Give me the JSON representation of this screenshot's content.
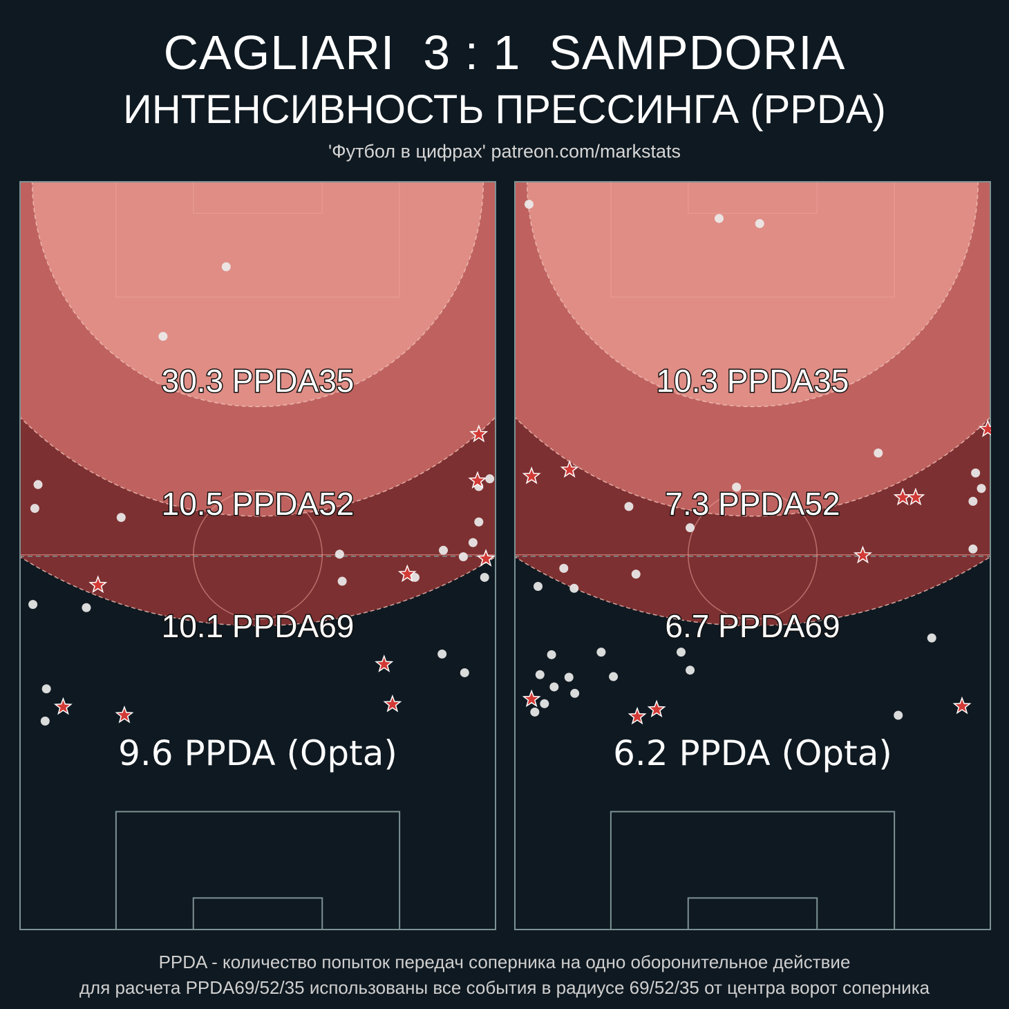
{
  "header": {
    "title": "CAGLIARI  3 : 1  SAMPDORIA",
    "subtitle": "ИНТЕНСИВНОСТЬ ПРЕССИНГА (PPDA)",
    "credit": "'Футбол в цифрах' patreon.com/markstats"
  },
  "footer": {
    "line1": "PPDA - количество попыток передач соперника на одно оборонительное действие",
    "line2": "для расчета PPDA69/52/35 использованы все события в радиусе 69/52/35 от центра ворот соперника"
  },
  "colors": {
    "background": "#0f1921",
    "zone35": "#df8d85",
    "zone52": "#bf625f",
    "zone69": "#7d3031",
    "star": "#d23a36",
    "dot": "#ececec",
    "line": "#7d9294"
  },
  "chart_data": [
    {
      "type": "scatter",
      "team": "CAGLIARI",
      "zones": [
        {
          "label": "30.3 PPDA35",
          "radius": 35
        },
        {
          "label": "10.5 PPDA52",
          "radius": 52
        },
        {
          "label": "10.1 PPDA69",
          "radius": 69
        }
      ],
      "opta_label": "9.6 PPDA (Opta)",
      "dots": [
        [
          32.1,
          86.7
        ],
        [
          22.3,
          75.9
        ],
        [
          2.9,
          52.9
        ],
        [
          2.4,
          49.2
        ],
        [
          15.8,
          47.8
        ],
        [
          73,
          53.8
        ],
        [
          71.3,
          52.6
        ],
        [
          71.3,
          47.1
        ],
        [
          70.4,
          43.9
        ],
        [
          65.8,
          42.7
        ],
        [
          68.9,
          41.7
        ],
        [
          49.7,
          42.1
        ],
        [
          61.4,
          38.5
        ],
        [
          72.2,
          38.5
        ],
        [
          50.1,
          37.9
        ],
        [
          2.1,
          34.3
        ],
        [
          10.4,
          33.8
        ],
        [
          65.6,
          26.6
        ],
        [
          69.1,
          23.7
        ],
        [
          4.2,
          21.2
        ],
        [
          4.0,
          16.2
        ]
      ],
      "stars": [
        [
          71.3,
          60.7
        ],
        [
          71.1,
          53.5
        ],
        [
          72.4,
          41.4
        ],
        [
          60.2,
          39
        ],
        [
          12.2,
          37.3
        ],
        [
          56.6,
          25
        ],
        [
          6.8,
          18.4
        ],
        [
          16.3,
          17.1
        ],
        [
          57.9,
          18.8
        ]
      ]
    },
    {
      "type": "scatter",
      "team": "SAMPDORIA",
      "zones": [
        {
          "label": "10.3 PPDA35",
          "radius": 35
        },
        {
          "label": "7.3 PPDA52",
          "radius": 52
        },
        {
          "label": "6.7 PPDA69",
          "radius": 69
        }
      ],
      "opta_label": "6.2 PPDA (Opta)",
      "dots": [
        [
          2.3,
          96.4
        ],
        [
          31.8,
          94.2
        ],
        [
          38.1,
          93.4
        ],
        [
          56.5,
          57.8
        ],
        [
          71.6,
          54.7
        ],
        [
          72.5,
          52.3
        ],
        [
          34.5,
          52.5
        ],
        [
          71.2,
          50.3
        ],
        [
          17.8,
          49.5
        ],
        [
          27.3,
          46.2
        ],
        [
          71.2,
          42.9
        ],
        [
          7.7,
          39.9
        ],
        [
          18.9,
          39
        ],
        [
          3.7,
          37.1
        ],
        [
          9.3,
          36.8
        ],
        [
          64.8,
          29.1
        ],
        [
          5.8,
          26.5
        ],
        [
          13.5,
          26.9
        ],
        [
          25.9,
          26.9
        ],
        [
          27.3,
          24.1
        ],
        [
          4,
          23.4
        ],
        [
          8.5,
          23.0
        ],
        [
          15.4,
          23.1
        ],
        [
          6.2,
          21.5
        ],
        [
          9.4,
          20.5
        ],
        [
          4.7,
          18.9
        ],
        [
          59.6,
          17.1
        ],
        [
          3.2,
          17.6
        ]
      ],
      "stars": [
        [
          73.5,
          61.5
        ],
        [
          2.7,
          54.2
        ],
        [
          8.6,
          55.2
        ],
        [
          60.3,
          50.9
        ],
        [
          62.3,
          50.9
        ],
        [
          54.1,
          41.9
        ],
        [
          2.7,
          19.6
        ],
        [
          22.1,
          18.0
        ],
        [
          19.1,
          16.9
        ],
        [
          69.5,
          18.5
        ]
      ]
    }
  ]
}
